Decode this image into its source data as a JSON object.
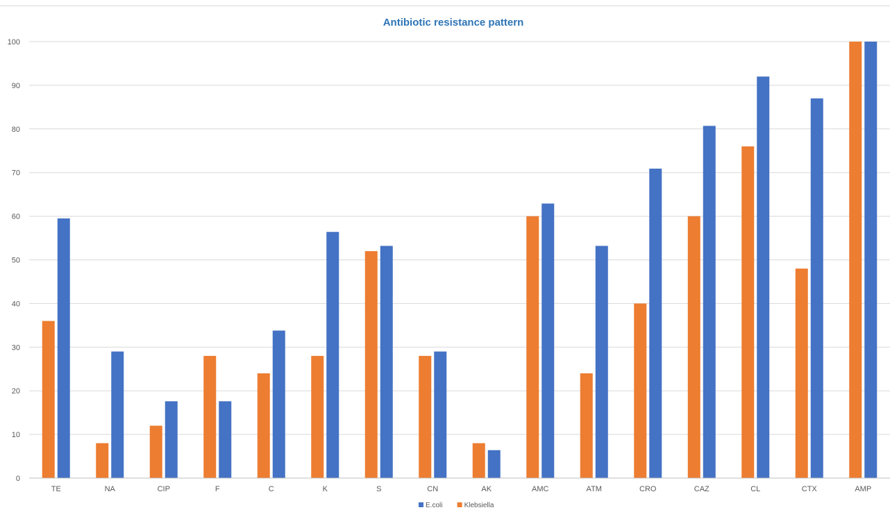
{
  "chart_data": {
    "type": "bar",
    "title": "Antibiotic resistance pattern",
    "xlabel": "",
    "ylabel": "",
    "ylim": [
      0,
      100
    ],
    "y_ticks": [
      0,
      10,
      20,
      30,
      40,
      50,
      60,
      70,
      80,
      90,
      100
    ],
    "grid": true,
    "legend_position": "bottom",
    "categories": [
      "TE",
      "NA",
      "CIP",
      "F",
      "C",
      "K",
      "S",
      "CN",
      "AK",
      "AMC",
      "ATM",
      "CRO",
      "CAZ",
      "CL",
      "CTX",
      "AMP"
    ],
    "series": [
      {
        "name": "Klebsiella",
        "color": "#ED7D31",
        "values": [
          36,
          8,
          12,
          28,
          24,
          28,
          52,
          28,
          8,
          60,
          24,
          40,
          60,
          76,
          48,
          100
        ]
      },
      {
        "name": "E.coli",
        "color": "#4472C4",
        "values": [
          59.5,
          29,
          17.6,
          17.6,
          33.8,
          56.4,
          53.2,
          29,
          6.4,
          62.9,
          53.2,
          70.9,
          80.7,
          92,
          87,
          100
        ]
      }
    ],
    "legend_order": [
      "E.coli",
      "Klebsiella"
    ],
    "colors": {
      "title": "#2E75B6",
      "grid": "#d9d9d9",
      "axis": "#bfbfbf"
    }
  }
}
